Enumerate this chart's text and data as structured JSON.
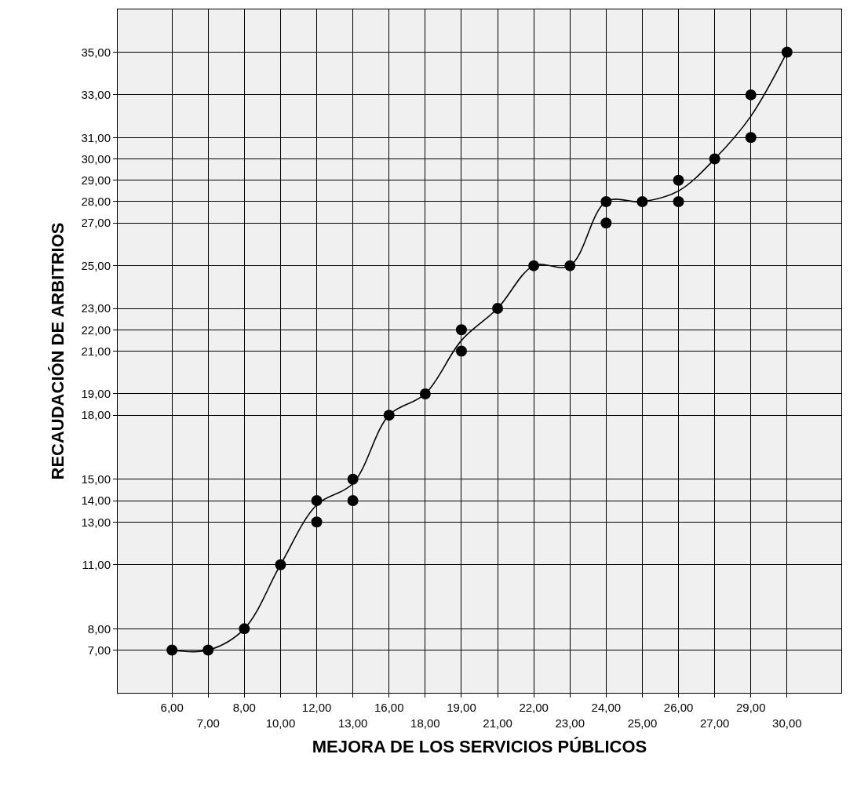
{
  "chart_data": {
    "type": "scatter",
    "xlabel": "MEJORA DE LOS SERVICIOS PÚBLICOS",
    "ylabel": "RECAUDACIÓN DE ARBITRIOS",
    "categories": [
      "6,00",
      "7,00",
      "8,00",
      "10,00",
      "12,00",
      "13,00",
      "16,00",
      "18,00",
      "19,00",
      "21,00",
      "22,00",
      "23,00",
      "24,00",
      "25,00",
      "26,00",
      "27,00",
      "29,00",
      "30,00"
    ],
    "series": [
      {
        "color": "#000000",
        "marker": "circle",
        "x": [
          "6,00",
          "7,00",
          "8,00",
          "10,00",
          "12,00",
          "12,00",
          "13,00",
          "13,00",
          "16,00",
          "18,00",
          "19,00",
          "19,00",
          "21,00",
          "22,00",
          "23,00",
          "24,00",
          "24,00",
          "25,00",
          "26,00",
          "26,00",
          "27,00",
          "29,00",
          "29,00",
          "30,00"
        ],
        "values": [
          7,
          7,
          8,
          11,
          14,
          13,
          15,
          14,
          18,
          19,
          22,
          21,
          23,
          25,
          25,
          28,
          27,
          28,
          29,
          28,
          30,
          33,
          31,
          35
        ]
      },
      {
        "type": "line",
        "color": "#000000",
        "marker": "none",
        "line_style": "solid",
        "values": [
          7,
          7,
          8,
          11,
          13.8,
          14.8,
          18,
          19,
          21.5,
          23,
          25,
          25,
          28,
          28,
          28.5,
          30,
          32,
          35
        ]
      }
    ],
    "ylim": [
      5,
      37
    ],
    "yticks": [
      {
        "value": 7,
        "label": "7,00"
      },
      {
        "value": 8,
        "label": "8,00"
      },
      {
        "value": 11,
        "label": "11,00"
      },
      {
        "value": 13,
        "label": "13,00"
      },
      {
        "value": 14,
        "label": "14,00"
      },
      {
        "value": 15,
        "label": "15,00"
      },
      {
        "value": 18,
        "label": "18,00"
      },
      {
        "value": 19,
        "label": "19,00"
      },
      {
        "value": 21,
        "label": "21,00"
      },
      {
        "value": 22,
        "label": "22,00"
      },
      {
        "value": 23,
        "label": "23,00"
      },
      {
        "value": 25,
        "label": "25,00"
      },
      {
        "value": 27,
        "label": "27,00"
      },
      {
        "value": 28,
        "label": "28,00"
      },
      {
        "value": 29,
        "label": "29,00"
      },
      {
        "value": 30,
        "label": "30,00"
      },
      {
        "value": 31,
        "label": "31,00"
      },
      {
        "value": 33,
        "label": "33,00"
      },
      {
        "value": 35,
        "label": "35,00"
      }
    ],
    "grid": true
  }
}
